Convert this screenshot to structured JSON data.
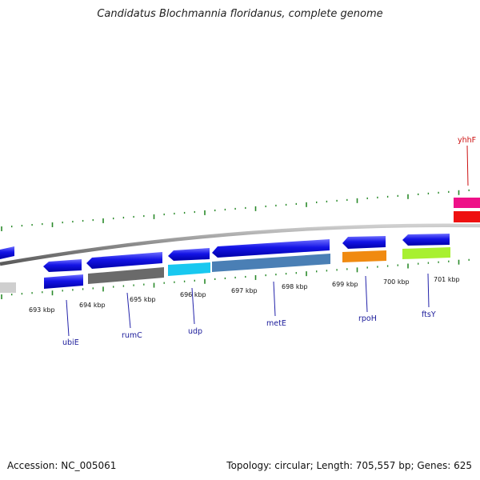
{
  "title": "Candidatus Blochmannia floridanus, complete genome",
  "footer": {
    "accession": "Accession: NC_005061",
    "summary": "Topology: circular; Length: 705,557 bp; Genes: 625"
  },
  "colors": {
    "backbone": "#8c8c8c",
    "tick": "#2a8a2a",
    "gene_forward": "#1010e0",
    "label_line": "#2222aa",
    "label_text": "#1a1a9a",
    "label_text_red": "#cc1111"
  },
  "kbp_labels": [
    "693 kbp",
    "694 kbp",
    "695 kbp",
    "696 kbp",
    "697 kbp",
    "698 kbp",
    "699 kbp",
    "700 kbp",
    "701 kbp"
  ],
  "gene_labels": [
    {
      "name": "ubiE",
      "color": "#1a1a9a"
    },
    {
      "name": "rumC",
      "color": "#1a1a9a"
    },
    {
      "name": "udp",
      "color": "#1a1a9a"
    },
    {
      "name": "metE",
      "color": "#1a1a9a"
    },
    {
      "name": "rpoH",
      "color": "#1a1a9a"
    },
    {
      "name": "ftsY",
      "color": "#1a1a9a"
    },
    {
      "name": "yhhF",
      "color": "#cc1111"
    }
  ],
  "gene_features": [
    {
      "gene": "ubiE",
      "cog_color": "#1010d8"
    },
    {
      "gene": "rumC",
      "cog_color": "#6a6a6a"
    },
    {
      "gene": "udp",
      "cog_color": "#18c8f0"
    },
    {
      "gene": "metE",
      "cog_color": "#4a7fb5"
    },
    {
      "gene": "rpoH",
      "cog_color": "#f08a10"
    },
    {
      "gene": "ftsY",
      "cog_color": "#a8f030"
    },
    {
      "gene": "yhhF",
      "cog_color": "#ee1188"
    }
  ]
}
